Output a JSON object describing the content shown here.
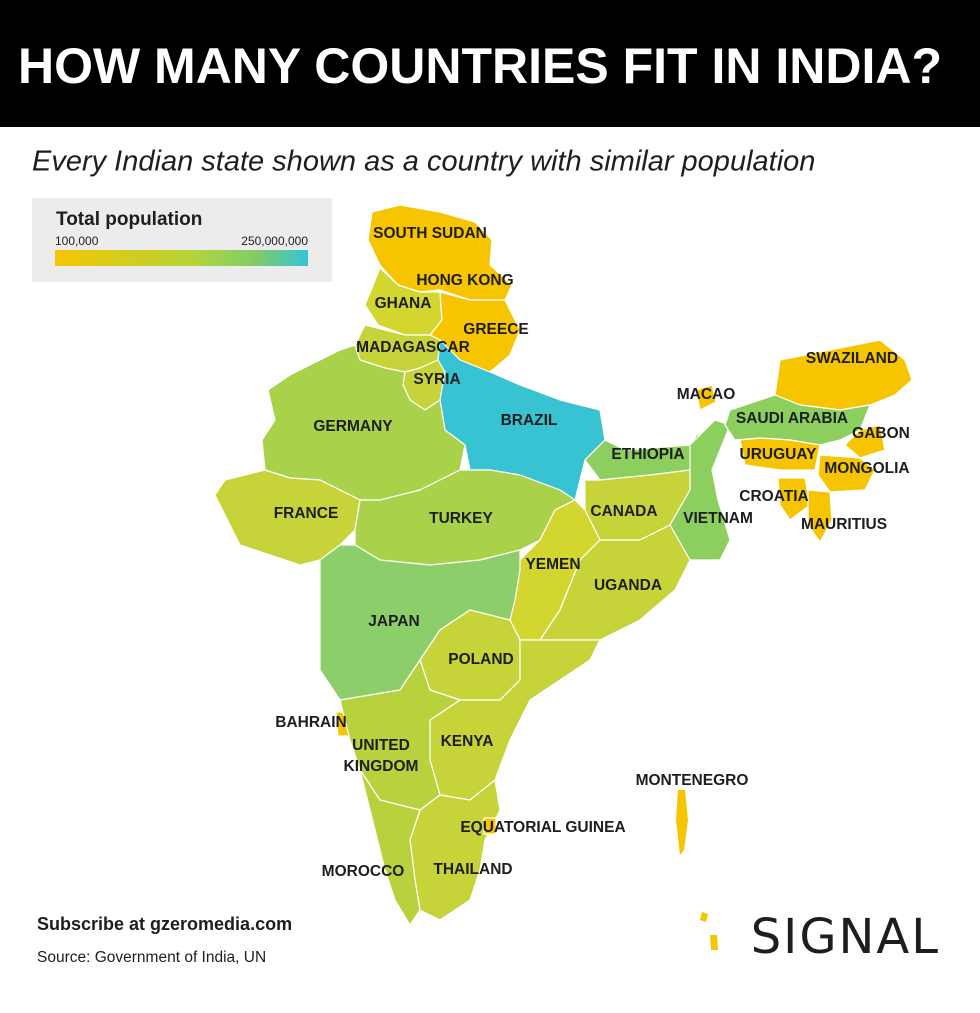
{
  "header": {
    "title": "HOW MANY COUNTRIES FIT IN INDIA?",
    "subtitle": "Every Indian state shown as a country with similar population"
  },
  "legend": {
    "title": "Total population",
    "min_label": "100,000",
    "max_label": "250,000,000"
  },
  "regions": [
    "SOUTH SUDAN",
    "HONG KONG",
    "GHANA",
    "GREECE",
    "MADAGASCAR",
    "SYRIA",
    "BRAZIL",
    "GERMANY",
    "FRANCE",
    "TURKEY",
    "ETHIOPIA",
    "CANADA",
    "VIETNAM",
    "YEMEN",
    "UGANDA",
    "JAPAN",
    "POLAND",
    "BAHRAIN",
    "UNITED",
    "KINGDOM",
    "KENYA",
    "MONTENEGRO",
    "EQUATORIAL GUINEA",
    "THAILAND",
    "MOROCCO",
    "MACAO",
    "SWAZILAND",
    "SAUDI ARABIA",
    "GABON",
    "URUGUAY",
    "MONGOLIA",
    "CROATIA",
    "MAURITIUS"
  ],
  "footer": {
    "subscribe": "Subscribe at gzeromedia.com",
    "source": "Source: Government of India, UN",
    "logo": "SIGNAL"
  }
}
